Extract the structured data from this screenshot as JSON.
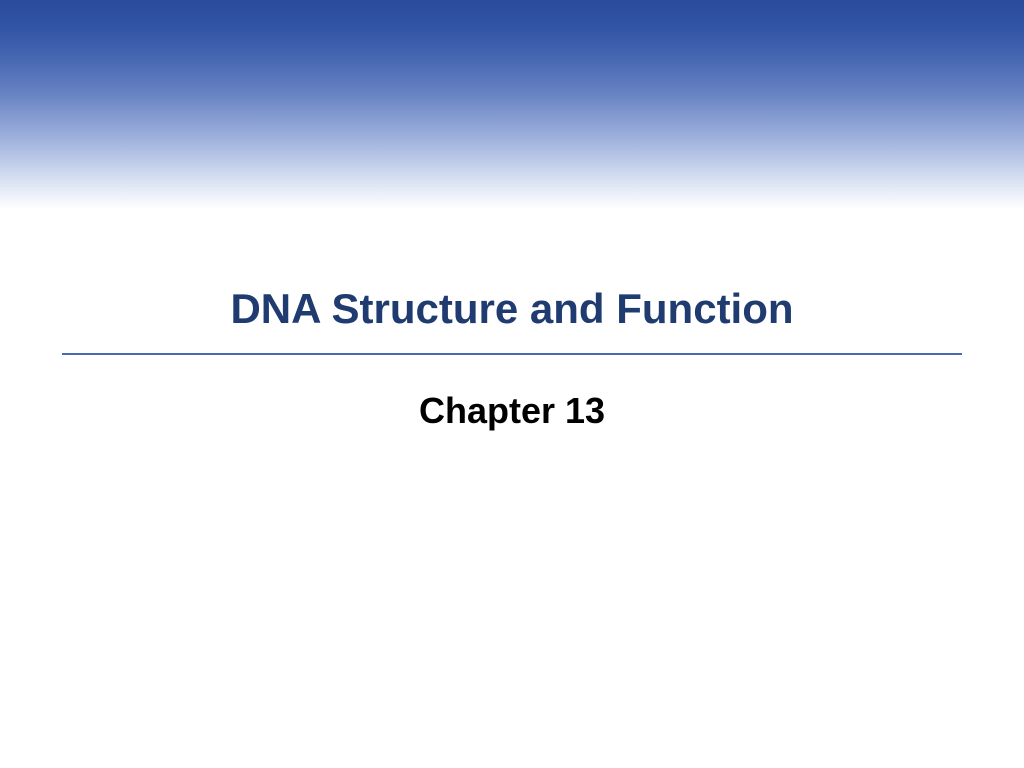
{
  "slide": {
    "title": "DNA Structure and Function",
    "subtitle": "Chapter 13"
  },
  "styling": {
    "gradient_start": "#2a4a9a",
    "gradient_end": "#ffffff",
    "title_color": "#1f3b6f",
    "title_fontsize": 42,
    "subtitle_color": "#000000",
    "subtitle_fontsize": 36,
    "divider_color": "#4a6ab4",
    "background_color": "#ffffff",
    "gradient_height": 210
  }
}
